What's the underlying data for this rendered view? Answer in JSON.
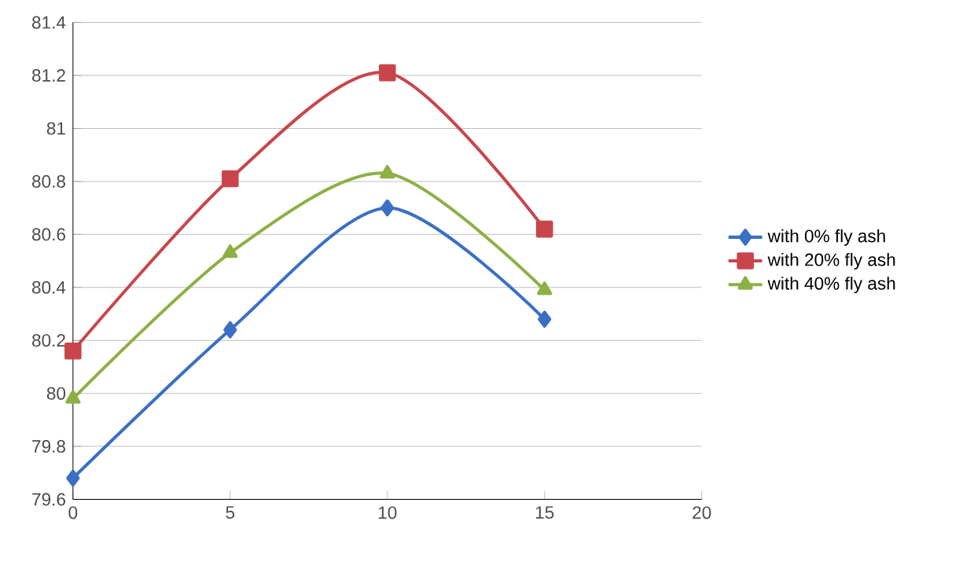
{
  "chart_data": {
    "type": "line",
    "x": [
      0,
      5,
      10,
      15
    ],
    "series": [
      {
        "name": "with 0% fly ash",
        "color": "#3a6fc4",
        "values": [
          79.68,
          80.24,
          80.7,
          80.28
        ],
        "marker": "diamond"
      },
      {
        "name": "with 20% fly ash",
        "color": "#c8464b",
        "values": [
          80.16,
          80.81,
          81.21,
          80.62
        ],
        "marker": "square"
      },
      {
        "name": "with 40% fly ash",
        "color": "#8db045",
        "values": [
          79.98,
          80.53,
          80.83,
          80.39
        ],
        "marker": "triangle"
      }
    ],
    "xlim": [
      0,
      20
    ],
    "xticks": [
      0,
      5,
      10,
      15,
      20
    ],
    "ylim": [
      79.6,
      81.4
    ],
    "yticks": [
      79.6,
      79.8,
      80,
      80.2,
      80.4,
      80.6,
      80.8,
      81,
      81.2,
      81.4
    ],
    "grid": "y",
    "legend": "right",
    "line_style": "solid"
  }
}
